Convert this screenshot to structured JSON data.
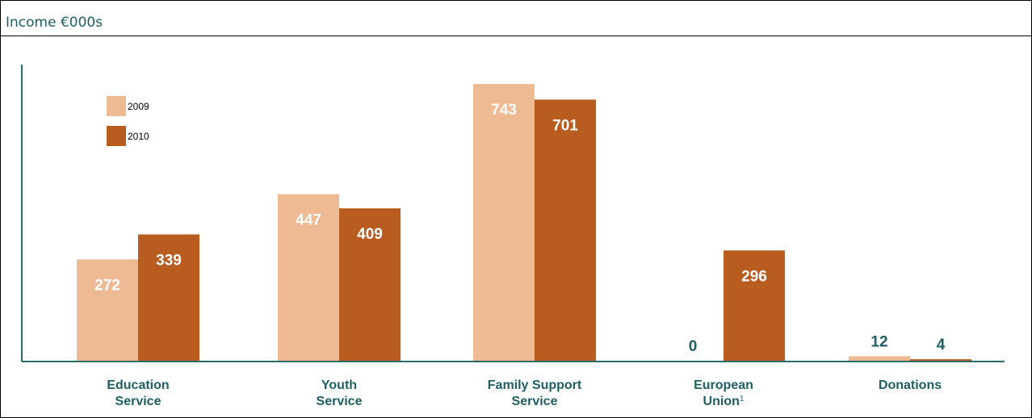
{
  "header": {
    "title": "Income €000s"
  },
  "colors": {
    "series_2009": "#EDBA93",
    "series_2010": "#B95C1F",
    "axis": "#2A6B6A",
    "category_text": "#1F5F63",
    "label_on_light": "#FFFFFF",
    "label_on_dark": "#FFFFFF",
    "label_outside": "#1F5F63",
    "title_text": "#1F5F63"
  },
  "chart_data": {
    "type": "bar",
    "title": "Income €000s",
    "xlabel": "",
    "ylabel": "",
    "categories": [
      {
        "lines": [
          "Education",
          "Service"
        ],
        "note": ""
      },
      {
        "lines": [
          "Youth",
          "Service"
        ],
        "note": ""
      },
      {
        "lines": [
          "Family Support",
          "Service"
        ],
        "note": ""
      },
      {
        "lines": [
          "European",
          "Union"
        ],
        "note": "1"
      },
      {
        "lines": [
          "Donations"
        ],
        "note": ""
      }
    ],
    "series": [
      {
        "name": "2009",
        "values": [
          272,
          447,
          743,
          0,
          12
        ]
      },
      {
        "name": "2010",
        "values": [
          339,
          409,
          701,
          296,
          4
        ]
      }
    ],
    "ylim": [
      0,
      743
    ],
    "grid": false,
    "legend": "top-left"
  }
}
